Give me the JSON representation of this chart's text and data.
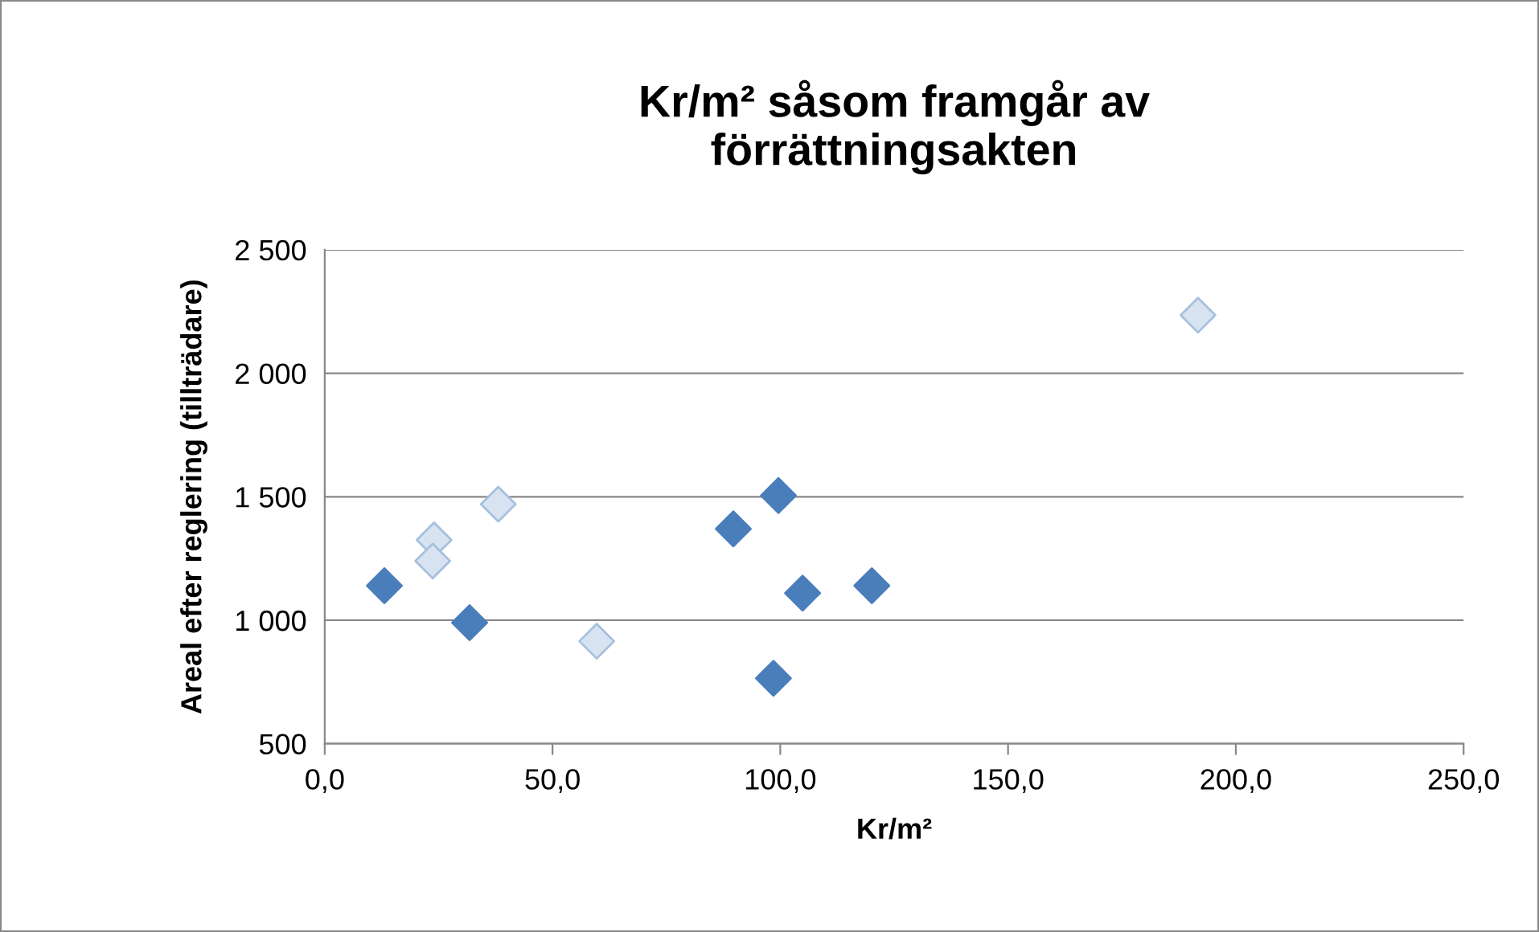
{
  "chart_data": {
    "type": "scatter",
    "title": "Kr/m² såsom framgår av\nförrättningsakten",
    "xlabel": "Kr/m²",
    "ylabel": "Areal efter reglering (tillträdare)",
    "series": [
      {
        "color": "#4a7ebb",
        "x": [
          13.1,
          31.8,
          89.7,
          99.6,
          104.9,
          120.1,
          98.5
        ],
        "values": [
          1140,
          990,
          1370,
          1505,
          1110,
          1140,
          765
        ]
      },
      {
        "color": "#a7c0de",
        "x": [
          24.0,
          23.7,
          38.1,
          59.7,
          191.7
        ],
        "values": [
          1325,
          1240,
          1470,
          915,
          2235
        ]
      }
    ],
    "xlim": [
      0,
      250
    ],
    "xticks": [
      {
        "value": 0,
        "label": "0,0"
      },
      {
        "value": 50,
        "label": "50,0"
      },
      {
        "value": 100,
        "label": "100,0"
      },
      {
        "value": 150,
        "label": "150,0"
      },
      {
        "value": 200,
        "label": "200,0"
      },
      {
        "value": 250,
        "label": "250,0"
      }
    ],
    "ylim": [
      500,
      2500
    ],
    "yticks": [
      {
        "value": 500,
        "label": "500"
      },
      {
        "value": 1000,
        "label": "1 000"
      },
      {
        "value": 1500,
        "label": "1 500"
      },
      {
        "value": 2000,
        "label": "2 000"
      },
      {
        "value": 2500,
        "label": "2 500"
      }
    ],
    "grid": "y",
    "marker": "diamond",
    "legend": false
  }
}
